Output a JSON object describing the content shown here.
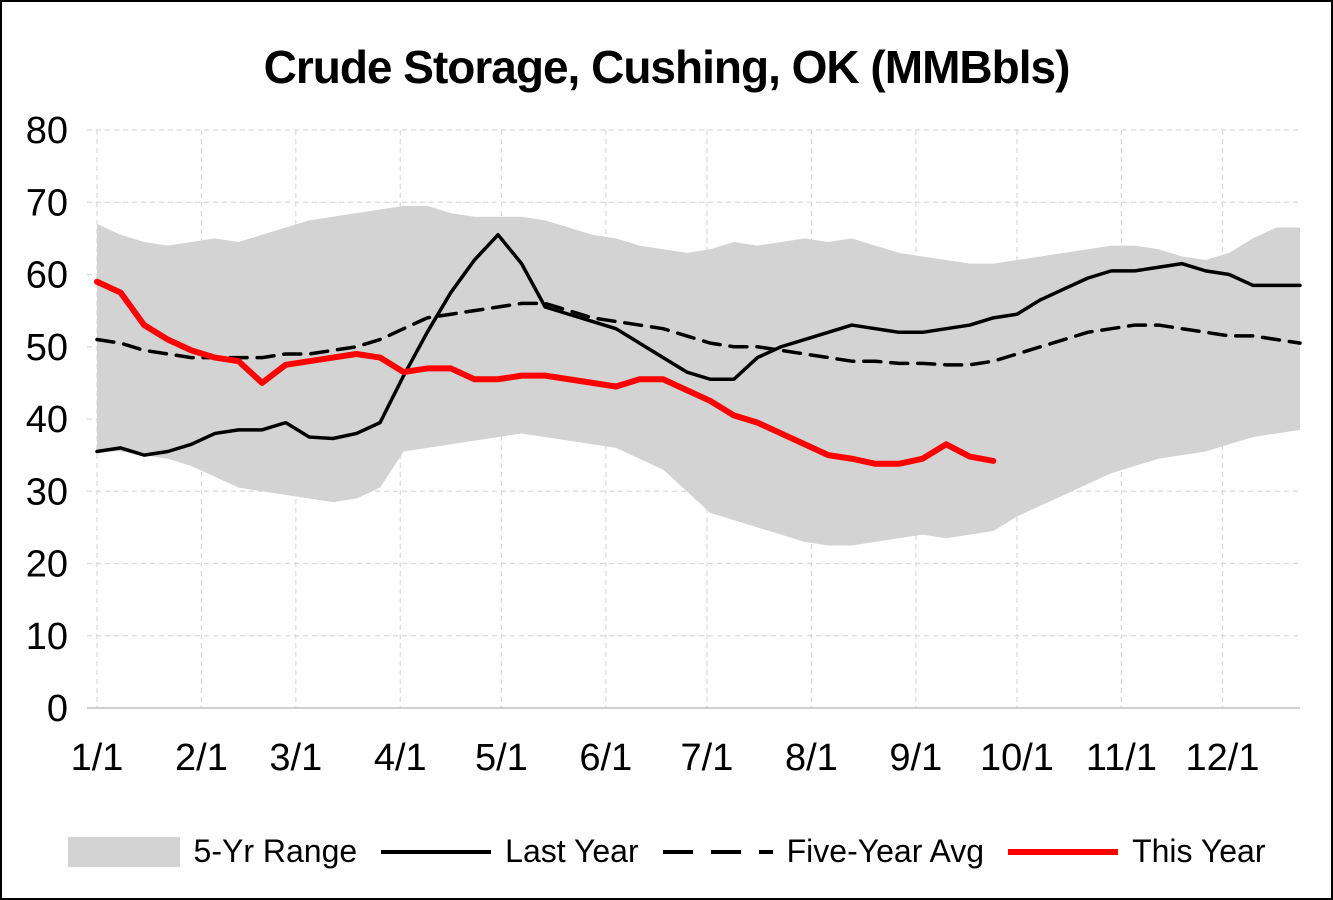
{
  "title": "Crude Storage, Cushing, OK (MMBbls)",
  "legend": {
    "range_label": "5-Yr Range",
    "last_year_label": "Last Year",
    "avg_label": "Five-Year Avg",
    "this_year_label": "This Year"
  },
  "colors": {
    "band": "#d3d3d3",
    "line_black": "#000000",
    "line_red": "#fe0000",
    "grid": "#d9d9d9",
    "axis": "#bfbfbf"
  },
  "chart_data": {
    "type": "line",
    "title": "Crude Storage, Cushing, OK (MMBbls)",
    "xlabel": "",
    "ylabel": "",
    "ylim": [
      0,
      80
    ],
    "grid": true,
    "legend_position": "bottom",
    "y_ticks": [
      0,
      10,
      20,
      30,
      40,
      50,
      60,
      70,
      80
    ],
    "x_ticks": [
      {
        "label": "1/1",
        "doy": 1
      },
      {
        "label": "2/1",
        "doy": 32
      },
      {
        "label": "3/1",
        "doy": 60
      },
      {
        "label": "4/1",
        "doy": 91
      },
      {
        "label": "5/1",
        "doy": 121
      },
      {
        "label": "6/1",
        "doy": 152
      },
      {
        "label": "7/1",
        "doy": 182
      },
      {
        "label": "8/1",
        "doy": 213
      },
      {
        "label": "9/1",
        "doy": 244
      },
      {
        "label": "10/1",
        "doy": 274
      },
      {
        "label": "11/1",
        "doy": 305
      },
      {
        "label": "12/1",
        "doy": 335
      }
    ],
    "x_unit": "weekly",
    "band": {
      "name": "5-Yr Range",
      "upper": [
        67,
        65.5,
        64.5,
        64,
        64.5,
        65,
        64.5,
        65.5,
        66.5,
        67.5,
        68,
        68.5,
        69,
        69.5,
        69.5,
        68.5,
        68,
        68,
        68,
        67.5,
        66.5,
        65.5,
        65,
        64,
        63.5,
        63,
        63.5,
        64.5,
        64,
        64.5,
        65,
        64.5,
        65,
        64,
        63,
        62.5,
        62,
        61.5,
        61.5,
        62,
        62.5,
        63,
        63.5,
        64,
        64,
        63.5,
        62.5,
        62,
        63,
        65,
        66.5,
        66.5
      ],
      "lower": [
        35.5,
        35.5,
        35,
        34.5,
        33.5,
        32,
        30.5,
        30,
        29.5,
        29,
        28.5,
        29,
        30.5,
        35.5,
        36,
        36.5,
        37,
        37.5,
        38,
        37.5,
        37,
        36.5,
        36,
        34.5,
        33,
        30,
        27,
        26,
        25,
        24,
        23,
        22.5,
        22.5,
        23,
        23.5,
        24,
        23.5,
        24,
        24.5,
        26.5,
        28,
        29.5,
        31,
        32.5,
        33.5,
        34.5,
        35,
        35.5,
        36.5,
        37.5,
        38,
        38.5
      ]
    },
    "series": [
      {
        "id": "last-year",
        "name": "Last Year",
        "color": "#000000",
        "stroke_width": 3.5,
        "dash": null,
        "values": [
          35.5,
          36,
          35,
          35.5,
          36.5,
          38,
          38.5,
          38.5,
          39.5,
          37.5,
          37.3,
          38,
          39.5,
          46,
          52,
          57.5,
          62,
          65.5,
          61.5,
          55.5,
          54.5,
          53.5,
          52.5,
          50.5,
          48.5,
          46.5,
          45.5,
          45.5,
          48.5,
          50,
          51,
          52,
          53,
          52.5,
          52,
          52,
          52.5,
          53,
          54,
          54.5,
          56.5,
          58,
          59.5,
          60.5,
          60.5,
          61,
          61.5,
          60.5,
          60,
          58.5,
          58.5,
          58.5
        ]
      },
      {
        "id": "five-year-avg",
        "name": "Five-Year Avg",
        "color": "#000000",
        "stroke_width": 3.5,
        "dash": "17 10",
        "values": [
          51,
          50.5,
          49.5,
          49,
          48.5,
          48.5,
          48.5,
          48.5,
          49,
          49,
          49.5,
          50,
          51,
          52.5,
          54,
          54.5,
          55,
          55.5,
          56,
          56,
          55,
          54,
          53.5,
          53,
          52.5,
          51.5,
          50.5,
          50,
          50,
          49.5,
          49,
          48.5,
          48,
          48,
          47.7,
          47.7,
          47.5,
          47.5,
          48,
          49,
          50,
          51,
          52,
          52.5,
          53,
          53,
          52.5,
          52,
          51.5,
          51.5,
          51,
          50.5
        ]
      },
      {
        "id": "this-year",
        "name": "This Year",
        "color": "#fe0000",
        "stroke_width": 6,
        "dash": null,
        "values": [
          59,
          57.5,
          53,
          51,
          49.5,
          48.5,
          48,
          45,
          47.5,
          48,
          48.5,
          49,
          48.5,
          46.5,
          47,
          47,
          45.5,
          45.5,
          46,
          46,
          45.5,
          45,
          44.5,
          45.5,
          45.5,
          44,
          42.5,
          40.5,
          39.5,
          38,
          36.5,
          35,
          34.5,
          33.8,
          33.8,
          34.5,
          36.5,
          34.8,
          34.2
        ]
      }
    ]
  }
}
